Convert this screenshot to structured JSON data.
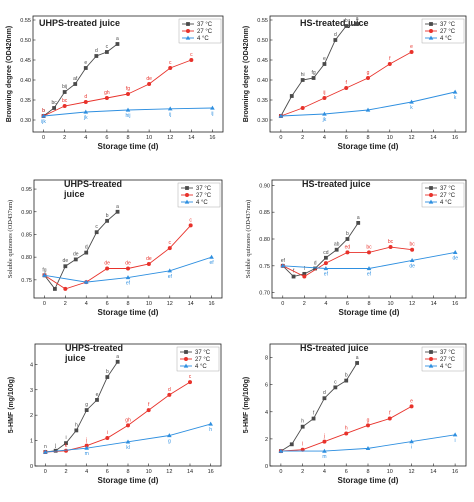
{
  "colors": {
    "c37": "#4a4a4a",
    "c27": "#e8322b",
    "c4": "#2e8fe0"
  },
  "legend_labels": [
    "37 °C",
    "27 °C",
    "4 °C"
  ],
  "chart_data": [
    {
      "type": "line",
      "title": "UHPS-treated juice",
      "xlabel": "Storage time (d)",
      "ylabel": "Browning degree (OD420nm)",
      "xlim": [
        -1,
        17
      ],
      "ylim": [
        0.27,
        0.56
      ],
      "xticks": [
        0,
        2,
        4,
        6,
        8,
        10,
        12,
        14,
        16
      ],
      "yticks": [
        0.3,
        0.35,
        0.4,
        0.45,
        0.5,
        0.55
      ],
      "ytick_labels": [
        "0.30",
        "0.35",
        "0.40",
        "0.45",
        "0.50",
        "0.55"
      ],
      "series": [
        {
          "name": "37 °C",
          "x": [
            0,
            1,
            2,
            3,
            4,
            5,
            6,
            7
          ],
          "y": [
            0.31,
            0.33,
            0.37,
            0.39,
            0.43,
            0.46,
            0.47,
            0.49
          ],
          "labels": [
            "b",
            "bc",
            "bij",
            "af",
            "e",
            "d",
            "c",
            "a"
          ]
        },
        {
          "name": "27 °C",
          "x": [
            0,
            2,
            4,
            6,
            8,
            10,
            12,
            14
          ],
          "y": [
            0.31,
            0.335,
            0.345,
            0.355,
            0.365,
            0.39,
            0.43,
            0.45
          ],
          "labels": [
            "b",
            "bc",
            "d",
            "gh",
            "fg",
            "de",
            "c",
            "c"
          ]
        },
        {
          "name": "4 °C",
          "x": [
            0,
            4,
            8,
            12,
            16
          ],
          "y": [
            0.31,
            0.32,
            0.325,
            0.328,
            0.33
          ],
          "labels": [
            "ijk",
            "jk",
            "hij",
            "ij",
            "ij"
          ]
        }
      ]
    },
    {
      "type": "line",
      "title": "HS-treated juice",
      "xlabel": "Storage time (d)",
      "ylabel": "Browning degree (OD420nm)",
      "xlim": [
        -1,
        17
      ],
      "ylim": [
        0.27,
        0.56
      ],
      "xticks": [
        0,
        2,
        4,
        6,
        8,
        10,
        12,
        14,
        16
      ],
      "yticks": [
        0.3,
        0.35,
        0.4,
        0.45,
        0.5,
        0.55
      ],
      "ytick_labels": [
        "0.30",
        "0.35",
        "0.40",
        "0.45",
        "0.50",
        "0.55"
      ],
      "series": [
        {
          "name": "37 °C",
          "x": [
            0,
            1,
            2,
            3,
            4,
            5,
            6,
            7
          ],
          "y": [
            0.31,
            0.36,
            0.4,
            0.405,
            0.44,
            0.5,
            0.535,
            0.54
          ],
          "labels": [
            "",
            "",
            "hi",
            "fg",
            "e",
            "d",
            "b",
            "a"
          ]
        },
        {
          "name": "27 °C",
          "x": [
            0,
            2,
            4,
            6,
            8,
            10,
            12
          ],
          "y": [
            0.31,
            0.33,
            0.355,
            0.38,
            0.405,
            0.44,
            0.47
          ],
          "labels": [
            "",
            "",
            "ij",
            "f",
            "g",
            "f",
            "e"
          ]
        },
        {
          "name": "4 °C",
          "x": [
            0,
            4,
            8,
            12,
            16
          ],
          "y": [
            0.31,
            0.315,
            0.325,
            0.345,
            0.37
          ],
          "labels": [
            "",
            "jk",
            "",
            "k",
            "k"
          ]
        }
      ]
    },
    {
      "type": "line",
      "title": "UHPS-treated\njuice",
      "xlabel": "Storage time (d)",
      "ylabel": "Soluble quinones (OD437nm)",
      "xlim": [
        -1,
        17
      ],
      "ylim": [
        0.71,
        0.97
      ],
      "xticks": [
        0,
        2,
        4,
        6,
        8,
        10,
        12,
        14,
        16
      ],
      "yticks": [
        0.75,
        0.8,
        0.85,
        0.9,
        0.95
      ],
      "ytick_labels": [
        "0.75",
        "0.80",
        "0.85",
        "0.90",
        "0.95"
      ],
      "series": [
        {
          "name": "37 °C",
          "x": [
            0,
            1,
            2,
            3,
            4,
            5,
            6,
            7
          ],
          "y": [
            0.76,
            0.73,
            0.78,
            0.795,
            0.81,
            0.855,
            0.88,
            0.9
          ],
          "labels": [
            "fg",
            "",
            "de",
            "de",
            "d",
            "c",
            "b",
            "a"
          ]
        },
        {
          "name": "27 °C",
          "x": [
            0,
            2,
            4,
            6,
            8,
            10,
            12,
            14
          ],
          "y": [
            0.76,
            0.73,
            0.745,
            0.775,
            0.775,
            0.785,
            0.82,
            0.87
          ],
          "labels": [
            "",
            "",
            "",
            "de",
            "de",
            "de",
            "c",
            "c"
          ]
        },
        {
          "name": "4 °C",
          "x": [
            0,
            4,
            8,
            12,
            16
          ],
          "y": [
            0.76,
            0.745,
            0.755,
            0.77,
            0.8
          ],
          "labels": [
            "",
            "",
            "ef",
            "ef",
            "ef"
          ]
        }
      ]
    },
    {
      "type": "line",
      "title": "HS-treated juice",
      "xlabel": "Storage time (d)",
      "ylabel": "Soluble quinones (OD437nm)",
      "xlim": [
        -1,
        17
      ],
      "ylim": [
        0.69,
        0.91
      ],
      "xticks": [
        0,
        2,
        4,
        6,
        8,
        10,
        12,
        14,
        16
      ],
      "yticks": [
        0.7,
        0.75,
        0.8,
        0.85,
        0.9
      ],
      "ytick_labels": [
        "0.70",
        "0.75",
        "0.80",
        "0.85",
        "0.90"
      ],
      "series": [
        {
          "name": "37 °C",
          "x": [
            0,
            1,
            2,
            3,
            4,
            5,
            6,
            7
          ],
          "y": [
            0.75,
            0.73,
            0.735,
            0.745,
            0.765,
            0.78,
            0.8,
            0.83
          ],
          "labels": [
            "ef",
            "f",
            "f",
            "d",
            "cd",
            "ab",
            "b",
            "a"
          ]
        },
        {
          "name": "27 °C",
          "x": [
            0,
            2,
            4,
            6,
            8,
            10,
            12
          ],
          "y": [
            0.75,
            0.73,
            0.755,
            0.775,
            0.775,
            0.785,
            0.78
          ],
          "labels": [
            "",
            "",
            "",
            "ed",
            "bc",
            "bc",
            "bc"
          ]
        },
        {
          "name": "4 °C",
          "x": [
            0,
            4,
            8,
            12,
            16
          ],
          "y": [
            0.75,
            0.745,
            0.745,
            0.76,
            0.775
          ],
          "labels": [
            "",
            "ef",
            "ef",
            "de",
            "de"
          ]
        }
      ]
    },
    {
      "type": "line",
      "title": "UHPS-treated\njuice",
      "xlabel": "Storage time (d)",
      "ylabel": "5-HMF (mg/100g)",
      "xlim": [
        -1,
        17
      ],
      "ylim": [
        0,
        4.8
      ],
      "xticks": [
        0,
        2,
        4,
        6,
        8,
        10,
        12,
        14,
        16
      ],
      "yticks": [
        0,
        1,
        2,
        3,
        4
      ],
      "ytick_labels": [
        "0",
        "1",
        "2",
        "3",
        "4"
      ],
      "series": [
        {
          "name": "37 °C",
          "x": [
            0,
            1,
            2,
            3,
            4,
            5,
            6,
            7
          ],
          "y": [
            0.55,
            0.6,
            0.9,
            1.4,
            2.2,
            2.6,
            3.5,
            4.1
          ],
          "labels": [
            "n",
            "j",
            "i",
            "h",
            "g",
            "e",
            "b",
            "a"
          ]
        },
        {
          "name": "27 °C",
          "x": [
            0,
            2,
            4,
            6,
            8,
            10,
            12,
            14
          ],
          "y": [
            0.55,
            0.6,
            0.8,
            1.1,
            1.6,
            2.2,
            2.8,
            3.3
          ],
          "labels": [
            "",
            "k",
            "j",
            "i",
            "gh",
            "f",
            "d",
            "c"
          ]
        },
        {
          "name": "4 °C",
          "x": [
            0,
            4,
            8,
            12,
            16
          ],
          "y": [
            0.55,
            0.7,
            0.95,
            1.2,
            1.65
          ],
          "labels": [
            "",
            "m",
            "kl",
            "g",
            "h"
          ]
        }
      ]
    },
    {
      "type": "line",
      "title": "HS-treated juice",
      "xlabel": "Storage time (d)",
      "ylabel": "5-HMF (mg/100g)",
      "xlim": [
        -1,
        17
      ],
      "ylim": [
        0,
        9
      ],
      "xticks": [
        0,
        2,
        4,
        6,
        8,
        10,
        12,
        14,
        16
      ],
      "yticks": [
        0,
        2,
        4,
        6,
        8
      ],
      "ytick_labels": [
        "0",
        "2",
        "4",
        "6",
        "8"
      ],
      "series": [
        {
          "name": "37 °C",
          "x": [
            0,
            1,
            2,
            3,
            4,
            5,
            6,
            7
          ],
          "y": [
            1.1,
            1.6,
            2.9,
            3.5,
            5.0,
            5.8,
            6.3,
            7.6
          ],
          "labels": [
            "",
            "",
            "h",
            "f",
            "d",
            "c",
            "b",
            "a"
          ]
        },
        {
          "name": "27 °C",
          "x": [
            0,
            2,
            4,
            6,
            8,
            10,
            12
          ],
          "y": [
            1.1,
            1.2,
            1.8,
            2.4,
            3.0,
            3.5,
            4.4
          ],
          "labels": [
            "",
            "l",
            "j",
            "h",
            "g",
            "f",
            "e"
          ]
        },
        {
          "name": "4 °C",
          "x": [
            0,
            4,
            8,
            12,
            16
          ],
          "y": [
            1.1,
            1.1,
            1.3,
            1.8,
            2.3
          ],
          "labels": [
            "",
            "m",
            "",
            "i",
            "i"
          ]
        }
      ]
    }
  ]
}
